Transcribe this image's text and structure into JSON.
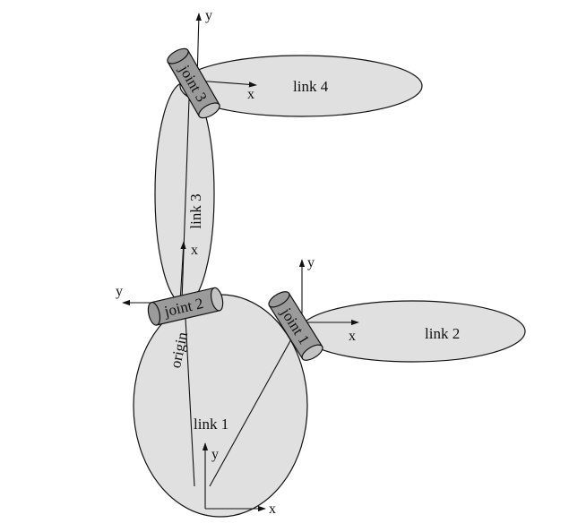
{
  "links": {
    "link1": "link 1",
    "link2": "link 2",
    "link3": "link 3",
    "link4": "link 4"
  },
  "joints": {
    "joint1": "joint 1",
    "joint2": "joint 2",
    "joint3": "joint 3"
  },
  "origin_label": "origin",
  "axis_labels": {
    "x": "x",
    "y": "y"
  }
}
